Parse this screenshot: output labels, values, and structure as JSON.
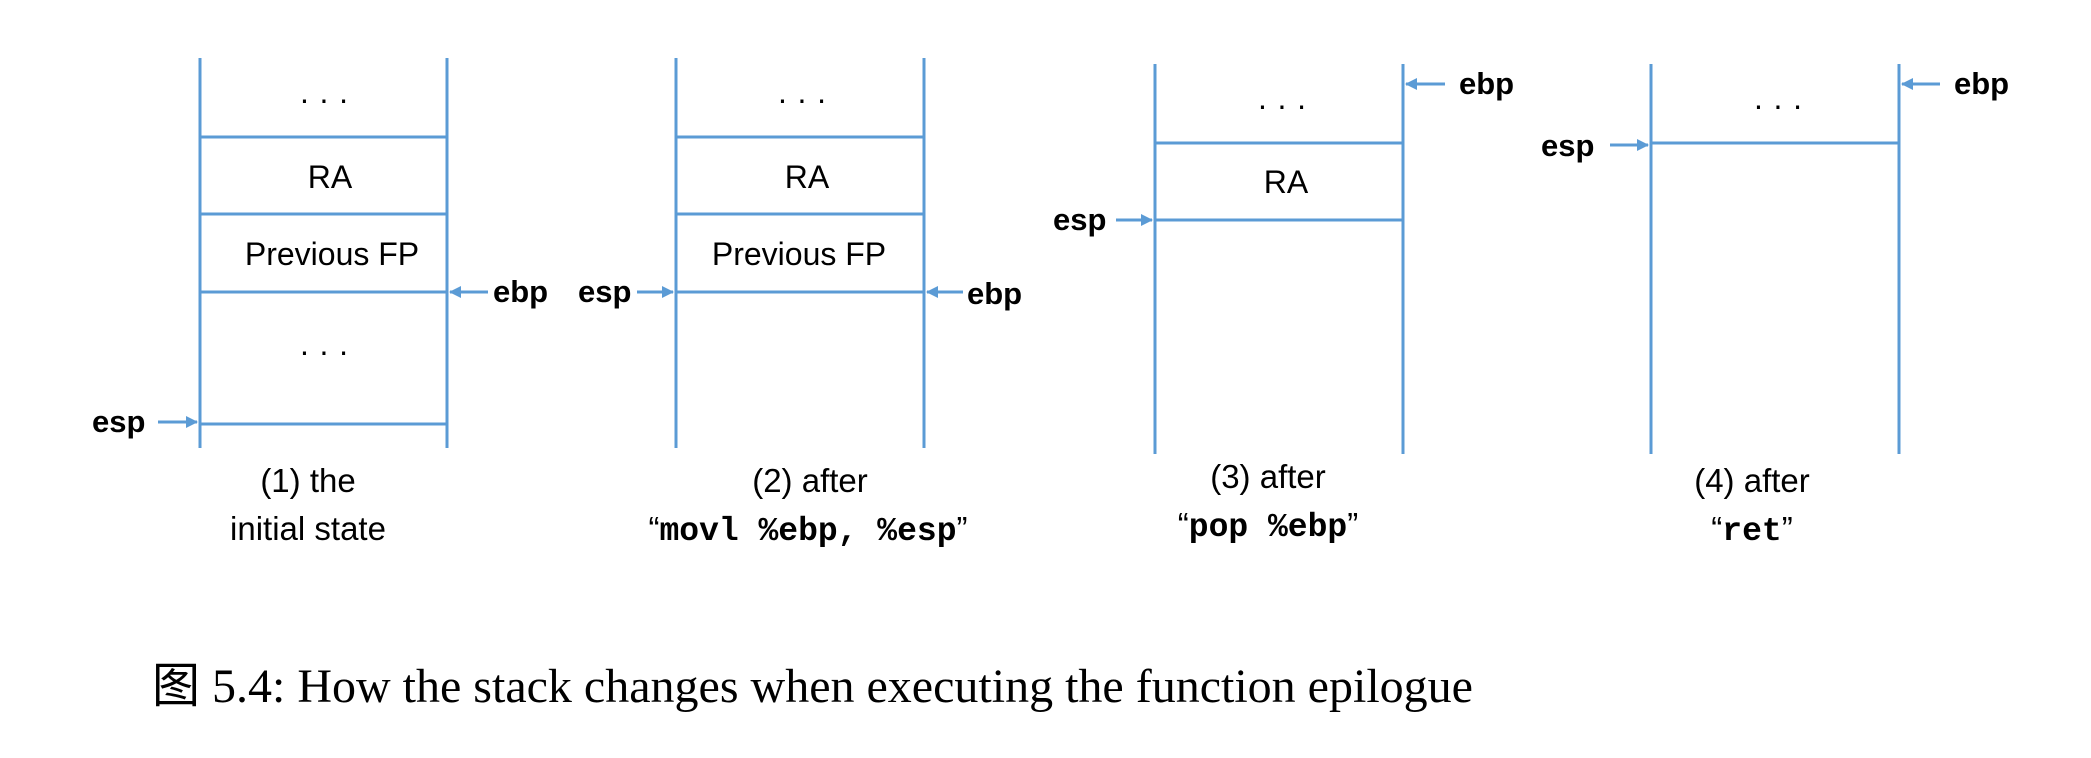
{
  "colors": {
    "stack_line": "#5b9bd5",
    "arrow": "#5b9bd5",
    "text": "#000000"
  },
  "stages": [
    {
      "slots": [
        "· · ·",
        "RA",
        "Previous FP",
        "· · ·"
      ],
      "pointers": {
        "esp": "esp",
        "ebp": "ebp"
      },
      "caption": {
        "line1": "(1) the",
        "line2": "initial state"
      }
    },
    {
      "slots": [
        "· · ·",
        "RA",
        "Previous FP"
      ],
      "pointers": {
        "esp": "esp",
        "ebp": "ebp"
      },
      "caption": {
        "line1": "(2) after",
        "open_quote": "“",
        "code": "movl %ebp, %esp",
        "close_quote": "”"
      }
    },
    {
      "slots": [
        "· · ·",
        "RA"
      ],
      "pointers": {
        "esp": "esp",
        "ebp": "ebp"
      },
      "caption": {
        "line1": "(3) after",
        "open_quote": "“",
        "code": "pop %ebp",
        "close_quote": "”"
      }
    },
    {
      "slots": [
        "· · ·"
      ],
      "pointers": {
        "esp": "esp",
        "ebp": "ebp"
      },
      "caption": {
        "line1": "(4) after",
        "open_quote": "“",
        "code": "ret",
        "close_quote": "”"
      }
    }
  ],
  "figure_caption": "图 5.4: How the stack changes when executing the function epilogue"
}
